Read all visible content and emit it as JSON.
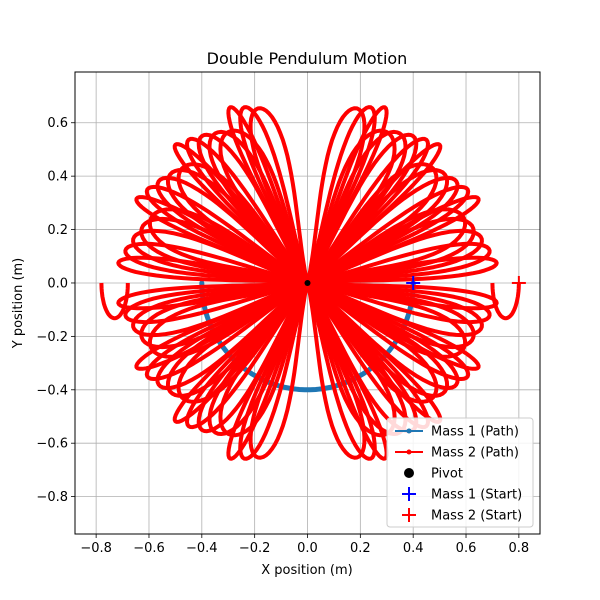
{
  "chart_data": {
    "type": "line",
    "title": "Double Pendulum Motion",
    "xlabel": "X position (m)",
    "ylabel": "Y position (m)",
    "xlim": [
      -0.88,
      0.88
    ],
    "ylim": [
      -0.94,
      0.79
    ],
    "xticks": [
      -0.8,
      -0.6,
      -0.4,
      -0.2,
      0.0,
      0.2,
      0.4,
      0.6,
      0.8
    ],
    "xtick_labels": [
      "−0.8",
      "−0.6",
      "−0.4",
      "−0.2",
      "0.0",
      "0.2",
      "0.4",
      "0.6",
      "0.8"
    ],
    "yticks": [
      -0.8,
      -0.6,
      -0.4,
      -0.2,
      0.0,
      0.2,
      0.4,
      0.6
    ],
    "ytick_labels": [
      "−0.8",
      "−0.6",
      "−0.4",
      "−0.2",
      "0.0",
      "0.2",
      "0.4",
      "0.6"
    ],
    "grid": true,
    "legend_position": "lower-right",
    "pendulum": {
      "arm_lengths": [
        0.4,
        0.4
      ],
      "pivot": [
        0.0,
        0.0
      ],
      "mass1_start": [
        0.4,
        0.0
      ],
      "mass2_start": [
        0.8,
        0.0
      ],
      "mass1_arc_range_deg": [
        -90,
        90
      ],
      "mass2_lobe_angles_deg": [
        6,
        10,
        14,
        18,
        22,
        26,
        30,
        34,
        38,
        42,
        46,
        50,
        54,
        58,
        62,
        66,
        70,
        74
      ],
      "mass2_lobe_widths": [
        0.05,
        0.07,
        0.09,
        0.11,
        0.12
      ]
    },
    "series": [
      {
        "name": "Mass 1 (Path)",
        "color": "#1f77b4",
        "marker": "circle",
        "style": "line"
      },
      {
        "name": "Mass 2 (Path)",
        "color": "#ff0000",
        "marker": "circle",
        "style": "line"
      },
      {
        "name": "Pivot",
        "color": "#000000",
        "marker": "circle",
        "style": "marker"
      },
      {
        "name": "Mass 1 (Start)",
        "color": "#0000ff",
        "marker": "plus",
        "style": "marker"
      },
      {
        "name": "Mass 2 (Start)",
        "color": "#ff0000",
        "marker": "plus",
        "style": "marker"
      }
    ]
  }
}
